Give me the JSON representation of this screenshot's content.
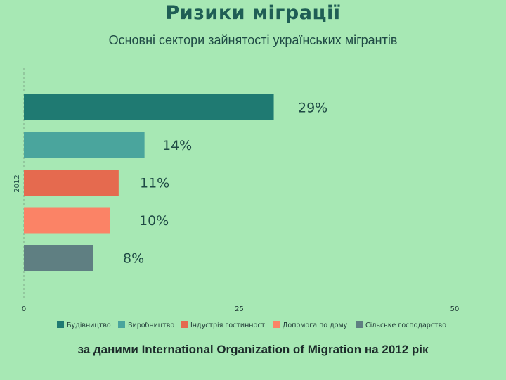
{
  "slide_title": "Ризики міграції",
  "source_note": "за даними International Organization of Migration на 2012 рік",
  "chart_data": {
    "type": "bar",
    "orientation": "horizontal",
    "title": "Основні сектори зайнятості українських мігрантів",
    "category_label": "2012",
    "value_suffix": "%",
    "xlim": [
      0,
      50
    ],
    "xticks": [
      0,
      25,
      50
    ],
    "grid": false,
    "legend_position": "bottom",
    "series": [
      {
        "name": "Будівництво",
        "value": 29,
        "label": "29%",
        "color": "#1f7a72"
      },
      {
        "name": "Виробництво",
        "value": 14,
        "label": "14%",
        "color": "#4aa59d"
      },
      {
        "name": "Індустрія гостинності",
        "value": 11,
        "label": "11%",
        "color": "#e56a4f"
      },
      {
        "name": "Допомога по дому",
        "value": 10,
        "label": "10%",
        "color": "#fb8366"
      },
      {
        "name": "Сільське господарство",
        "value": 8,
        "label": "8%",
        "color": "#5f7f82"
      }
    ]
  }
}
